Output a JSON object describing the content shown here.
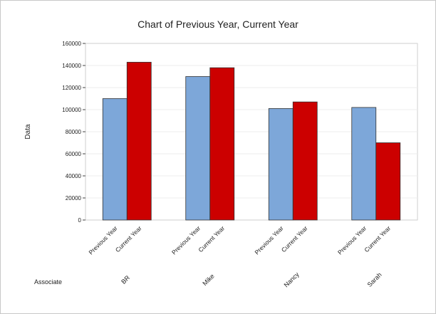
{
  "chart_data": {
    "type": "bar",
    "title": "Chart of Previous Year, Current Year",
    "ylabel": "Data",
    "xlabel": "Associate",
    "ylim": [
      0,
      160000
    ],
    "yticks": [
      0,
      20000,
      40000,
      60000,
      80000,
      100000,
      120000,
      140000,
      160000
    ],
    "categories": [
      "BR",
      "Mike",
      "Nancy",
      "Sarah"
    ],
    "series": [
      {
        "name": "Previous Year",
        "color": "#7da7d9",
        "values": [
          110000,
          130000,
          101000,
          102000
        ]
      },
      {
        "name": "Current Year",
        "color": "#cc0000",
        "values": [
          143000,
          138000,
          107000,
          70000
        ]
      }
    ],
    "grid": true,
    "legend": "none"
  }
}
